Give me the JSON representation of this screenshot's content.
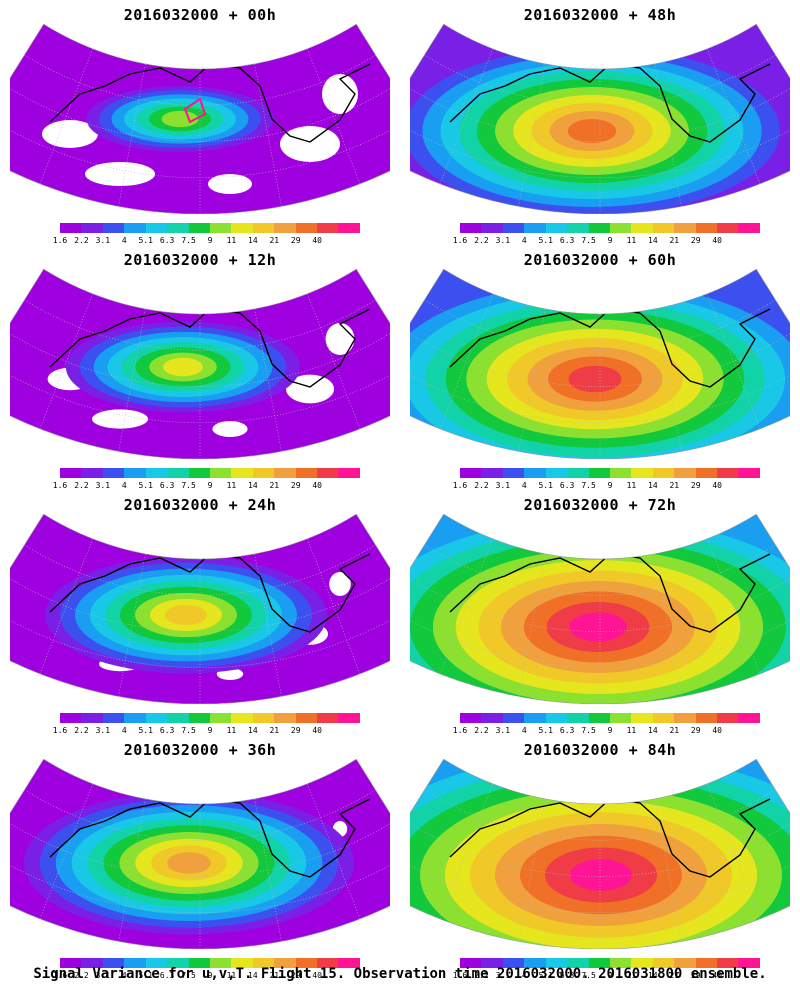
{
  "panels": [
    {
      "title": "2016032000 + 00h"
    },
    {
      "title": "2016032000 + 48h"
    },
    {
      "title": "2016032000 + 12h"
    },
    {
      "title": "2016032000 + 60h"
    },
    {
      "title": "2016032000 + 24h"
    },
    {
      "title": "2016032000 + 72h"
    },
    {
      "title": "2016032000 + 36h"
    },
    {
      "title": "2016032000 + 84h"
    }
  ],
  "colorbar": {
    "labels": [
      "1.6",
      "2.2",
      "3.1",
      "4",
      "5.1",
      "6.3",
      "7.5",
      "9",
      "11",
      "14",
      "21",
      "29",
      "40"
    ],
    "colors": [
      "#9f00e0",
      "#7a1fe6",
      "#3c50f0",
      "#1a9ef2",
      "#19c8e6",
      "#12d2a8",
      "#12c83c",
      "#8be030",
      "#e6e61e",
      "#f0c828",
      "#f0a03c",
      "#f07028",
      "#f03c46",
      "#ff1493"
    ]
  },
  "footer": "Signal Variance for u,v,T. Flight 15. Observation time 2016032000. 2016031800 ensemble."
}
